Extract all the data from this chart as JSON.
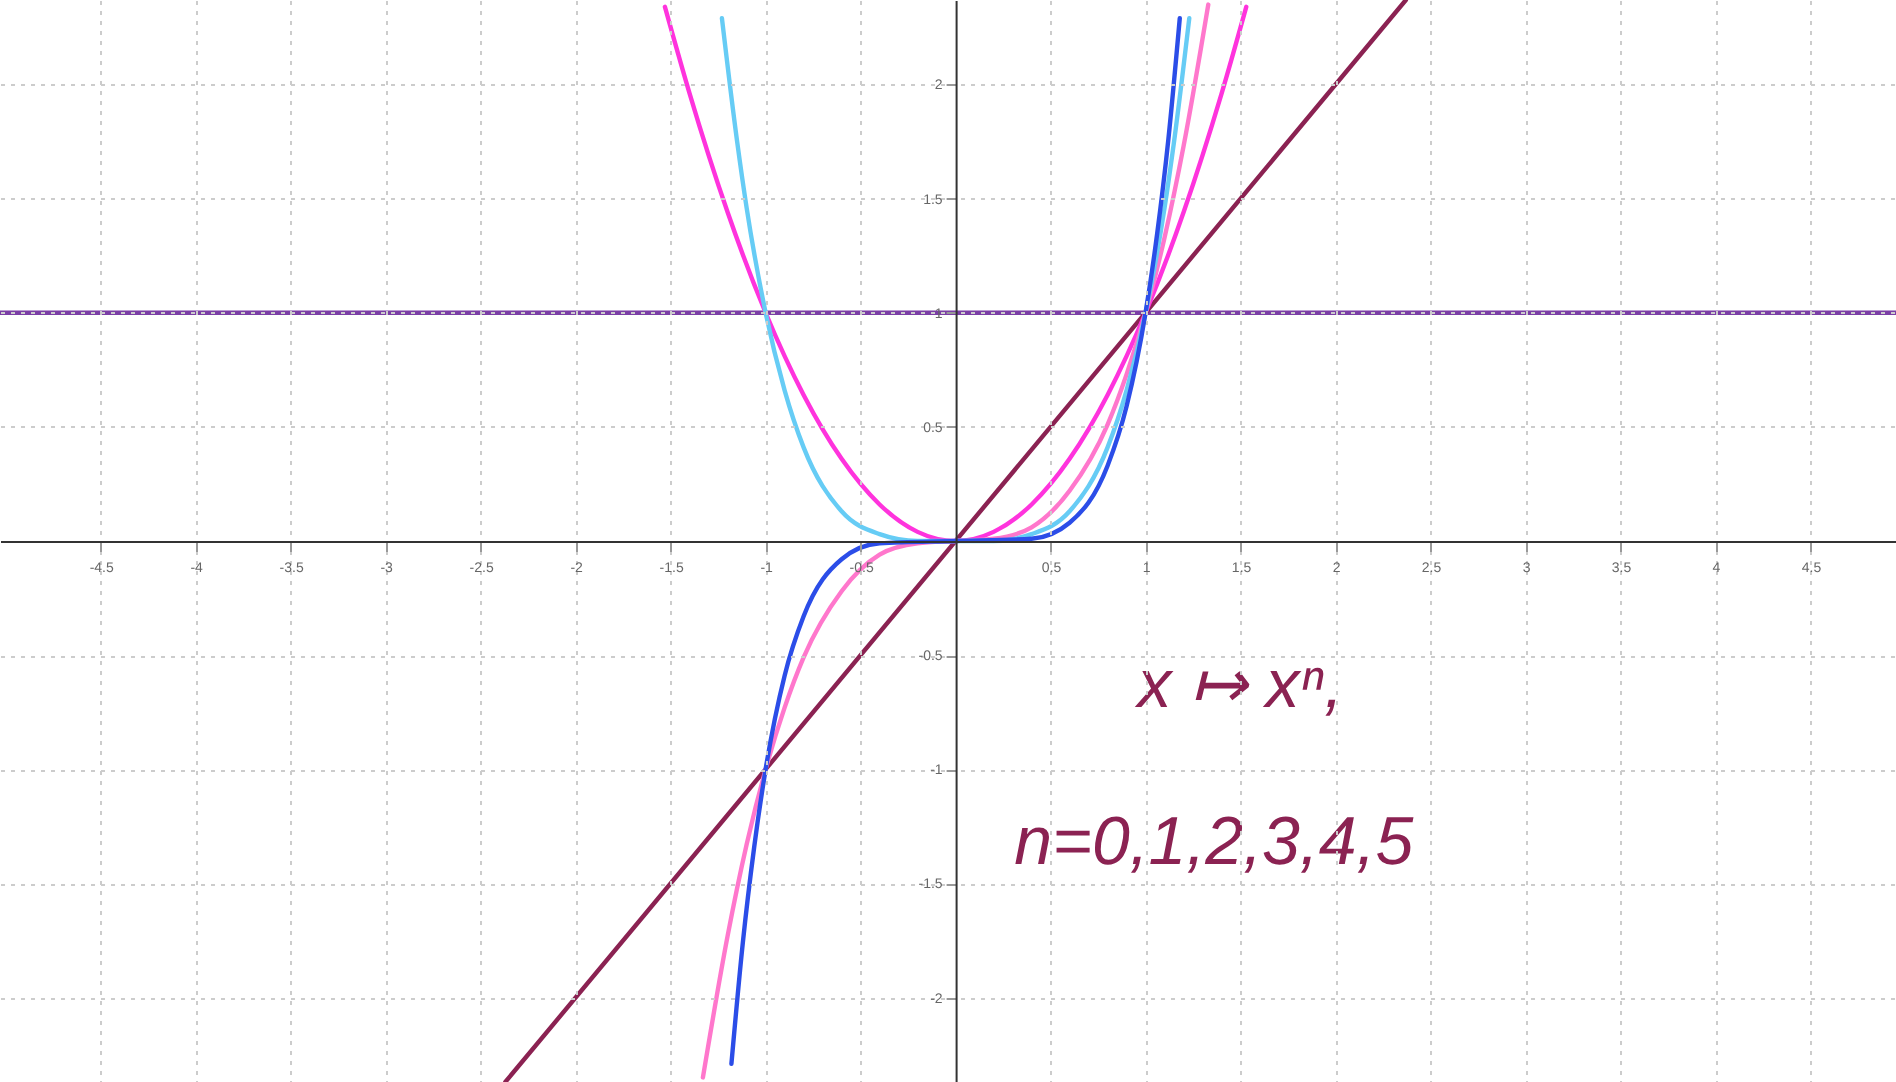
{
  "chart_data": {
    "type": "line",
    "xlim": [
      -5.03,
      4.95
    ],
    "ylim": [
      -2.37,
      2.37
    ],
    "xticks": [
      -4.5,
      -4,
      -3.5,
      -3,
      -2.5,
      -2,
      -1.5,
      -1,
      -0.5,
      0.5,
      1,
      1.5,
      2,
      2.5,
      3,
      3.5,
      4,
      4.5
    ],
    "yticks": [
      -2,
      -1.5,
      -1,
      -0.5,
      0.5,
      1,
      1.5,
      2
    ],
    "grid": true,
    "marker": "none",
    "line_style": "solid",
    "annotations": [
      "x ↦ xⁿ,",
      "n=0,1,2,3,4,5"
    ],
    "series": [
      {
        "color": "#7b3fa6",
        "x": [
          -5.03,
          4.95
        ],
        "values": [
          1,
          1
        ]
      },
      {
        "color": "#8b2252",
        "x": [
          -2.37,
          2.37
        ],
        "values": [
          -2.37,
          2.37
        ]
      },
      {
        "color": "#ff33dd",
        "x": [
          -1.53,
          -1.4,
          -1.2,
          -1,
          -0.8,
          -0.6,
          -0.4,
          -0.2,
          0,
          0.2,
          0.4,
          0.6,
          0.8,
          1,
          1.2,
          1.4,
          1.53
        ],
        "values": [
          2.34,
          1.96,
          1.44,
          1,
          0.64,
          0.36,
          0.16,
          0.04,
          0,
          0.04,
          0.16,
          0.36,
          0.64,
          1,
          1.44,
          1.96,
          2.34
        ]
      },
      {
        "color": "#ff77cc",
        "x": [
          -1.33,
          -1.2,
          -1.1,
          -1,
          -0.9,
          -0.8,
          -0.6,
          -0.4,
          -0.2,
          0,
          0.2,
          0.4,
          0.6,
          0.8,
          0.9,
          1,
          1.1,
          1.2,
          1.33
        ],
        "values": [
          -2.35,
          -1.73,
          -1.33,
          -1,
          -0.73,
          -0.51,
          -0.22,
          -0.06,
          -0.01,
          0,
          0.01,
          0.06,
          0.22,
          0.51,
          0.73,
          1,
          1.33,
          1.73,
          2.35
        ]
      },
      {
        "color": "#66ccf5",
        "x": [
          -1.23,
          -1.15,
          -1.1,
          -1,
          -0.9,
          -0.8,
          -0.6,
          -0.4,
          -0.2,
          0,
          0.2,
          0.4,
          0.6,
          0.8,
          0.9,
          1,
          1.1,
          1.15,
          1.23
        ],
        "values": [
          2.29,
          1.75,
          1.46,
          1,
          0.66,
          0.41,
          0.13,
          0.03,
          0,
          0,
          0,
          0.03,
          0.13,
          0.41,
          0.66,
          1,
          1.46,
          1.75,
          2.29
        ]
      },
      {
        "color": "#2b4de8",
        "x": [
          -1.18,
          -1.12,
          -1.06,
          -1,
          -0.9,
          -0.8,
          -0.6,
          -0.4,
          0,
          0.4,
          0.6,
          0.8,
          0.9,
          1,
          1.06,
          1.12,
          1.18
        ],
        "values": [
          -2.29,
          -1.76,
          -1.34,
          -1,
          -0.59,
          -0.33,
          -0.08,
          -0.01,
          0,
          0.01,
          0.08,
          0.33,
          0.59,
          1,
          1.34,
          1.76,
          2.29
        ]
      }
    ]
  }
}
